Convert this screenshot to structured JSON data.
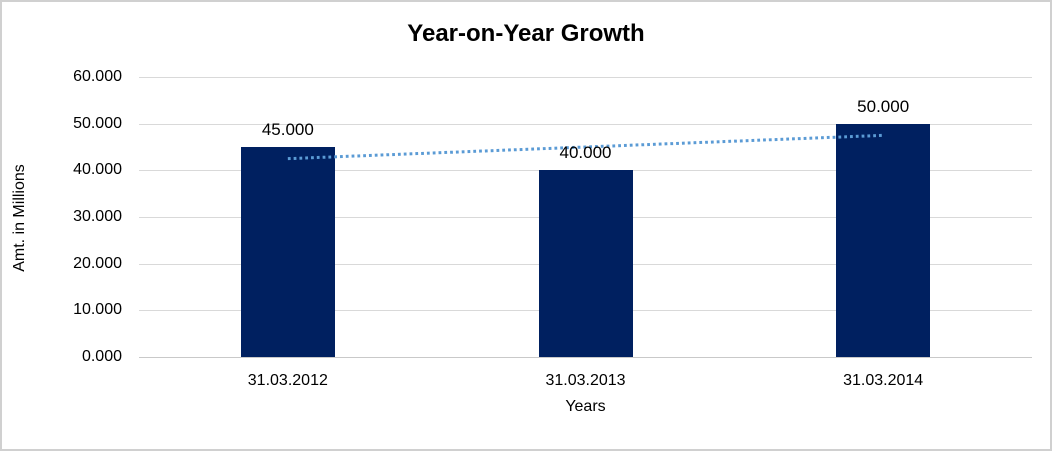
{
  "chart_data": {
    "type": "bar",
    "title": "Year-on-Year Growth",
    "xlabel": "Years",
    "ylabel": "Amt. in Millions",
    "categories": [
      "31.03.2012",
      "31.03.2013",
      "31.03.2014"
    ],
    "values": [
      45000,
      40000,
      50000
    ],
    "data_labels": [
      "45.000",
      "40.000",
      "50.000"
    ],
    "y_ticks": [
      {
        "label": "60.000",
        "value": 60000
      },
      {
        "label": "50.000",
        "value": 50000
      },
      {
        "label": "40.000",
        "value": 40000
      },
      {
        "label": "30.000",
        "value": 30000
      },
      {
        "label": "20.000",
        "value": 20000
      },
      {
        "label": "10.000",
        "value": 10000
      },
      {
        "label": "0.000",
        "value": 0
      }
    ],
    "ylim": [
      0,
      60000
    ],
    "grid": true,
    "legend": false,
    "trendline": {
      "type": "linear",
      "style": "dotted",
      "fitted_values": [
        42500,
        45000,
        47500
      ]
    },
    "colors": {
      "bar": "#002060",
      "trendline": "#5b9bd5",
      "gridline": "#d9d9d9",
      "baseline": "#c9c9c9",
      "text": "#000000",
      "frame_border": "#d0d0d0",
      "background": "#ffffff"
    }
  }
}
